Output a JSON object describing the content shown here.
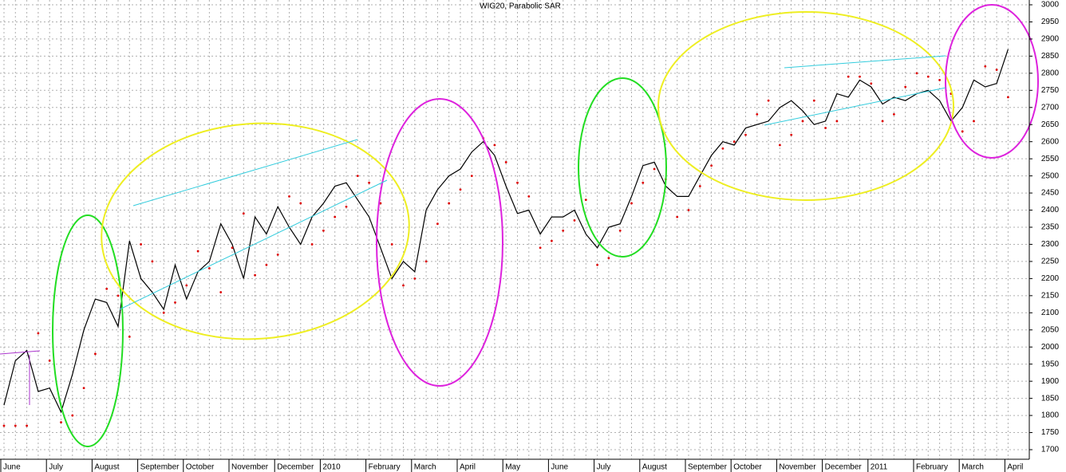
{
  "chart_data": {
    "type": "line",
    "title": "WIG20, Parabolic SAR",
    "categories": [
      "June",
      null,
      null,
      null,
      "July",
      null,
      null,
      null,
      "August",
      null,
      null,
      null,
      "September",
      null,
      null,
      null,
      "October",
      null,
      null,
      null,
      "November",
      null,
      null,
      null,
      "December",
      null,
      null,
      null,
      "2010",
      null,
      null,
      null,
      "February",
      null,
      null,
      null,
      "March",
      null,
      null,
      null,
      "April",
      null,
      null,
      null,
      "May",
      null,
      null,
      null,
      "June",
      null,
      null,
      null,
      "July",
      null,
      null,
      null,
      "August",
      null,
      null,
      null,
      "September",
      null,
      null,
      null,
      "October",
      null,
      null,
      null,
      "November",
      null,
      null,
      null,
      "December",
      null,
      null,
      null,
      "2011",
      null,
      null,
      null,
      "February",
      null,
      null,
      null,
      "March",
      null,
      null,
      null,
      "April"
    ],
    "series": [
      {
        "name": "WIG20",
        "color": "#000000",
        "mode": "lines",
        "values": [
          1830,
          1960,
          1990,
          1870,
          1880,
          1810,
          1920,
          2050,
          2140,
          2130,
          2060,
          2310,
          2200,
          2160,
          2110,
          2240,
          2140,
          2220,
          2250,
          2360,
          2300,
          2200,
          2380,
          2330,
          2410,
          2350,
          2300,
          2380,
          2420,
          2470,
          2480,
          2430,
          2380,
          2290,
          2200,
          2250,
          2220,
          2400,
          2460,
          2500,
          2520,
          2570,
          2600,
          2560,
          2470,
          2390,
          2400,
          2330,
          2380,
          2380,
          2400,
          2330,
          2290,
          2350,
          2360,
          2440,
          2530,
          2540,
          2470,
          2440,
          2440,
          2500,
          2560,
          2600,
          2590,
          2640,
          2650,
          2660,
          2700,
          2720,
          2690,
          2650,
          2660,
          2740,
          2730,
          2780,
          2760,
          2710,
          2730,
          2720,
          2740,
          2750,
          2720,
          2660,
          2700,
          2780,
          2760,
          2770,
          2870
        ]
      },
      {
        "name": "Parabolic SAR",
        "color": "#dd0000",
        "mode": "markers",
        "values": [
          1770,
          1770,
          1770,
          2040,
          1960,
          1780,
          1800,
          1880,
          1980,
          2170,
          2150,
          2030,
          2300,
          2250,
          2100,
          2130,
          2180,
          2280,
          2230,
          2160,
          2290,
          2390,
          2210,
          2240,
          2270,
          2440,
          2420,
          2300,
          2340,
          2380,
          2410,
          2500,
          2480,
          2420,
          2300,
          2180,
          2200,
          2250,
          2360,
          2420,
          2460,
          2500,
          2610,
          2590,
          2540,
          2480,
          2440,
          2290,
          2310,
          2340,
          2370,
          2430,
          2240,
          2260,
          2340,
          2420,
          2480,
          2520,
          2490,
          2380,
          2400,
          2470,
          2530,
          2580,
          2600,
          2620,
          2680,
          2720,
          2590,
          2620,
          2660,
          2720,
          2640,
          2660,
          2790,
          2790,
          2770,
          2660,
          2680,
          2760,
          2800,
          2790,
          2780,
          2740,
          2630,
          2660,
          2820,
          2810,
          2730
        ]
      }
    ],
    "ylim": [
      1700,
      3000
    ],
    "yticks": [
      1700,
      1750,
      1800,
      1850,
      1900,
      1950,
      2000,
      2050,
      2100,
      2150,
      2200,
      2250,
      2300,
      2350,
      2400,
      2450,
      2500,
      2550,
      2600,
      2650,
      2700,
      2750,
      2800,
      2850,
      2900,
      2950,
      3000
    ],
    "grid": true
  }
}
